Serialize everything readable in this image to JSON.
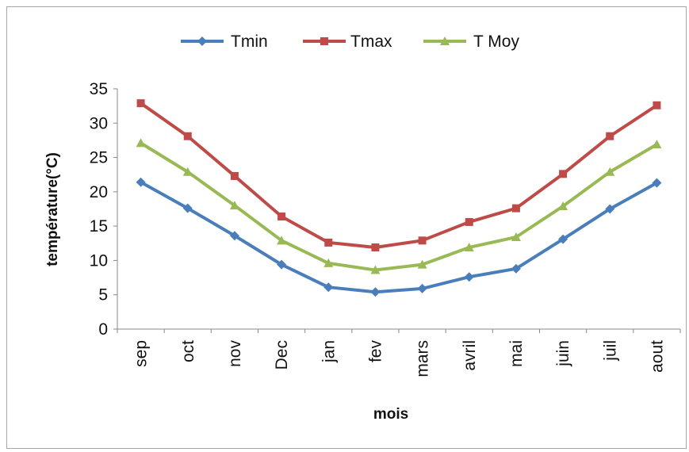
{
  "chart_data": {
    "type": "line",
    "title": "",
    "xlabel": "mois",
    "ylabel": "température(°C)",
    "ylim": [
      0,
      35
    ],
    "yticks": [
      0,
      5,
      10,
      15,
      20,
      25,
      30,
      35
    ],
    "categories": [
      "sep",
      "oct",
      "nov",
      "Dec",
      "jan",
      "fev",
      "mars",
      "avril",
      "mai",
      "juin",
      "juil",
      "aout"
    ],
    "grid": false,
    "legend_position": "top",
    "series": [
      {
        "name": "Tmin",
        "color": "#4a7ebb",
        "marker": "diamond",
        "values": [
          21.4,
          17.6,
          13.6,
          9.4,
          6.1,
          5.4,
          5.9,
          7.6,
          8.8,
          13.1,
          17.5,
          21.3
        ]
      },
      {
        "name": "Tmax",
        "color": "#be4b48",
        "marker": "square",
        "values": [
          32.9,
          28.1,
          22.3,
          16.4,
          12.6,
          11.9,
          12.9,
          15.6,
          17.6,
          22.6,
          28.1,
          32.6
        ]
      },
      {
        "name": "T Moy",
        "color": "#98b954",
        "marker": "triangle",
        "values": [
          27.1,
          22.9,
          18.0,
          12.9,
          9.6,
          8.6,
          9.4,
          11.9,
          13.4,
          17.9,
          22.9,
          26.9
        ]
      }
    ]
  }
}
